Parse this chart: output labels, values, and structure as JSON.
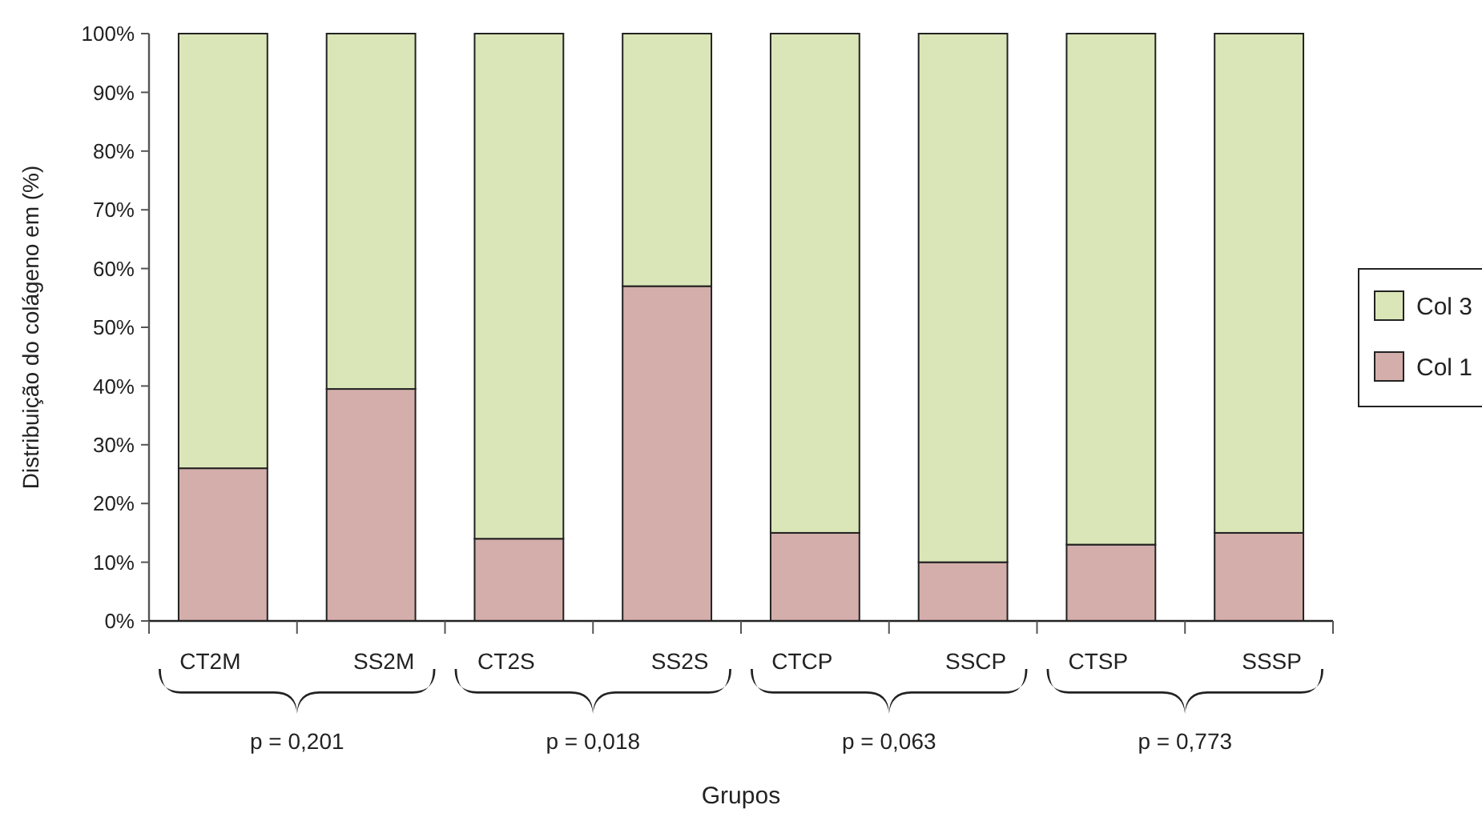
{
  "chart_data": {
    "type": "bar",
    "stacked": true,
    "xlabel": "Grupos",
    "ylabel": "Distribuição do colágeno em (%)",
    "categories": [
      "CT2M",
      "SS2M",
      "CT2S",
      "SS2S",
      "CTCP",
      "SSCP",
      "CTSP",
      "SSSP"
    ],
    "series": [
      {
        "name": "Col 1",
        "color": "#d4aeab",
        "values": [
          26,
          39.5,
          14,
          57,
          15,
          10,
          13,
          15
        ]
      },
      {
        "name": "Col 3",
        "color": "#dbe6b8",
        "values": [
          74,
          60.5,
          86,
          43,
          85,
          90,
          87,
          85
        ]
      }
    ],
    "ylim": [
      0,
      100
    ],
    "yticks": [
      {
        "value": 0,
        "label": "0%"
      },
      {
        "value": 10,
        "label": "10%"
      },
      {
        "value": 20,
        "label": "20%"
      },
      {
        "value": 30,
        "label": "30%"
      },
      {
        "value": 40,
        "label": "40%"
      },
      {
        "value": 50,
        "label": "50%"
      },
      {
        "value": 60,
        "label": "60%"
      },
      {
        "value": 70,
        "label": "70%"
      },
      {
        "value": 80,
        "label": "80%"
      },
      {
        "value": 90,
        "label": "90%"
      },
      {
        "value": 100,
        "label": "100%"
      }
    ],
    "grid": false,
    "legend": "right",
    "annotations": [
      "p = 0,201",
      "p = 0,018",
      "p = 0,063",
      "p = 0,773"
    ]
  }
}
